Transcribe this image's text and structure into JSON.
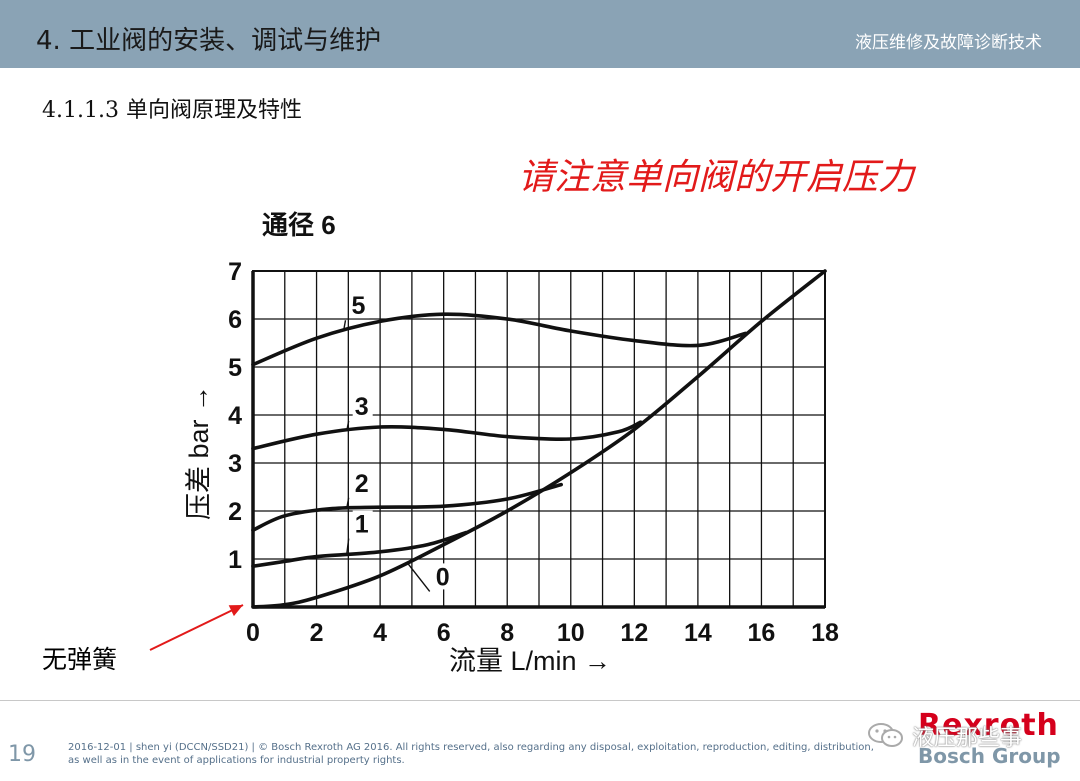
{
  "header": {
    "title": "4. 工业阀的安装、调试与维护",
    "subject": "液压维修及故障诊断技术"
  },
  "section_title": "4.1.1.3 单向阀原理及特性",
  "highlight_text": "请注意单向阀的开启压力",
  "annotation": {
    "label": "无弹簧",
    "arrow_color": "#e21a1a"
  },
  "footer": {
    "page_number": "19",
    "line1": "2016-12-01 | shen yi (DCCN/SSD21) | © Bosch Rexroth AG 2016. All rights reserved, also regarding any disposal, exploitation, reproduction, editing, distribution,",
    "line2": "as well as in the event of applications for industrial property rights.",
    "watermark": "液压那些事",
    "brand": "Rexroth",
    "brand_group": "Bosch Group"
  },
  "colors": {
    "header_bg": "#8aa3b5",
    "highlight": "#e21a1a",
    "brand_red": "#d5001c",
    "footer_blue": "#7f97a8"
  },
  "chart_data": {
    "type": "line",
    "title": "通径 6",
    "xlabel": "流量 L/min →",
    "ylabel": "压差 bar →",
    "xlim": [
      0,
      18
    ],
    "ylim": [
      0,
      7
    ],
    "xticks": [
      0,
      2,
      4,
      6,
      8,
      10,
      12,
      14,
      16,
      18
    ],
    "yticks": [
      0,
      1,
      2,
      3,
      4,
      5,
      6,
      7
    ],
    "grid": true,
    "series": [
      {
        "name": "5",
        "label_at": [
          3.1,
          6.1
        ],
        "points": [
          [
            0,
            5.05
          ],
          [
            2,
            5.6
          ],
          [
            4,
            5.95
          ],
          [
            6,
            6.1
          ],
          [
            8,
            6.0
          ],
          [
            10,
            5.75
          ],
          [
            12,
            5.55
          ],
          [
            14,
            5.45
          ],
          [
            15.5,
            5.7
          ]
        ]
      },
      {
        "name": "3",
        "label_at": [
          3.2,
          4.0
        ],
        "points": [
          [
            0,
            3.3
          ],
          [
            2,
            3.6
          ],
          [
            4,
            3.75
          ],
          [
            6,
            3.7
          ],
          [
            8,
            3.55
          ],
          [
            10,
            3.5
          ],
          [
            11.5,
            3.65
          ],
          [
            12.2,
            3.85
          ]
        ]
      },
      {
        "name": "2",
        "label_at": [
          3.2,
          2.4
        ],
        "points": [
          [
            0,
            1.6
          ],
          [
            1,
            1.9
          ],
          [
            2.5,
            2.05
          ],
          [
            4,
            2.08
          ],
          [
            6,
            2.1
          ],
          [
            8,
            2.25
          ],
          [
            9.7,
            2.55
          ]
        ]
      },
      {
        "name": "1",
        "label_at": [
          3.2,
          1.55
        ],
        "points": [
          [
            0,
            0.85
          ],
          [
            1,
            0.95
          ],
          [
            2,
            1.05
          ],
          [
            4,
            1.15
          ],
          [
            5.5,
            1.3
          ],
          [
            6.7,
            1.55
          ]
        ]
      },
      {
        "name": "0",
        "label_at": [
          5.75,
          0.45
        ],
        "points": [
          [
            0,
            0.0
          ],
          [
            1,
            0.05
          ],
          [
            2,
            0.2
          ],
          [
            4,
            0.65
          ],
          [
            6,
            1.3
          ],
          [
            8,
            2.0
          ],
          [
            10,
            2.8
          ],
          [
            12,
            3.7
          ],
          [
            14,
            4.8
          ],
          [
            16,
            5.95
          ],
          [
            18,
            7.0
          ]
        ]
      }
    ]
  }
}
